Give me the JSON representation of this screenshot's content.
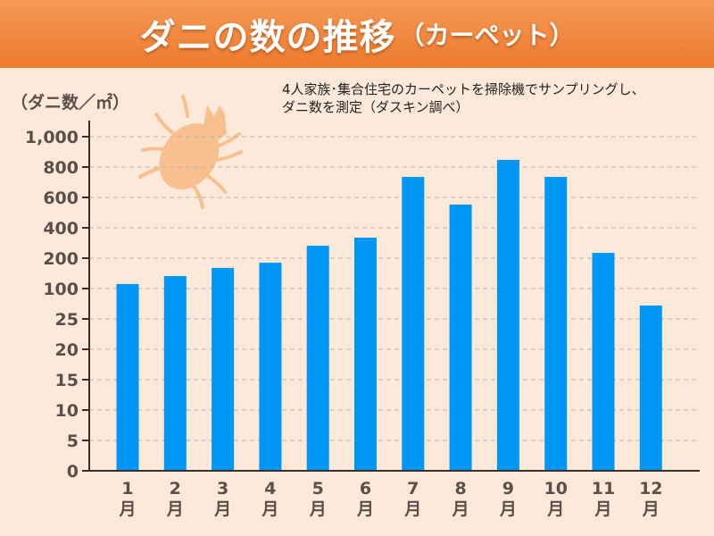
{
  "header": {
    "title": "ダニの数の推移",
    "subtitle": "（カーペット）"
  },
  "note": {
    "line1": "4人家族･集合住宅のカーペットを掃除機でサンプリングし、",
    "line2": "ダニ数を測定（ダスキン調べ）"
  },
  "chart_data": {
    "type": "bar",
    "title": "ダニの数の推移（カーペット）",
    "ylabel": "（ダニ数／㎡）",
    "xlabel": "",
    "y_scale": "piecewise (equal spacing per tick)",
    "y_ticks": [
      0,
      5,
      10,
      15,
      20,
      25,
      100,
      200,
      400,
      600,
      800,
      1000
    ],
    "y_tick_labels": [
      "0",
      "5",
      "10",
      "15",
      "20",
      "25",
      "100",
      "200",
      "400",
      "600",
      "800",
      "1,000"
    ],
    "ylim": [
      0,
      1000
    ],
    "grid": true,
    "categories": [
      "1月",
      "2月",
      "3月",
      "4月",
      "5月",
      "6月",
      "7月",
      "8月",
      "9月",
      "10月",
      "11月",
      "12月"
    ],
    "category_numbers": [
      "1",
      "2",
      "3",
      "4",
      "5",
      "6",
      "7",
      "8",
      "9",
      "10",
      "11",
      "12"
    ],
    "category_unit": "月",
    "values": [
      115,
      141,
      168,
      185,
      282,
      335,
      735,
      553,
      847,
      735,
      235,
      58
    ],
    "color": "#0096f5"
  },
  "colors": {
    "background": "#fde9d9",
    "banner": "#f08538",
    "bar": "#0096f5",
    "axis": "#3a2f2a",
    "mite": "#f9c08f"
  }
}
